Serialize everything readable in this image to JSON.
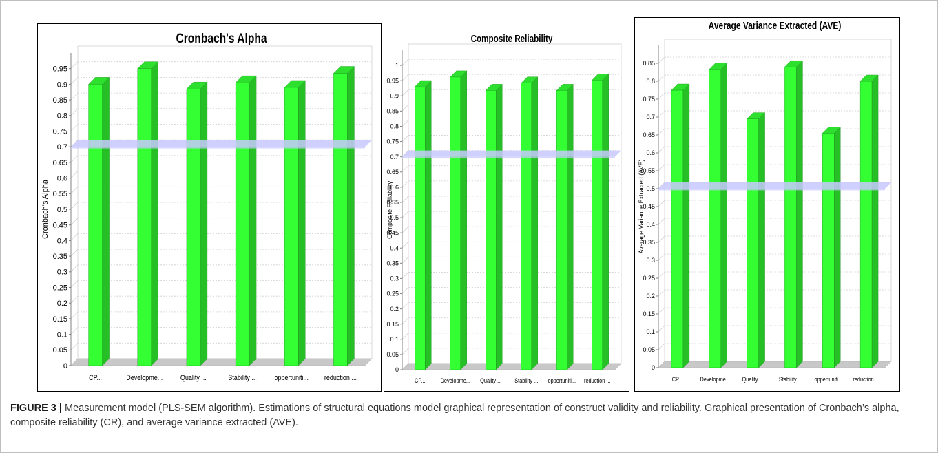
{
  "chart_data": [
    {
      "type": "bar",
      "title": "Cronbach's Alpha",
      "ylabel": "Cronbach's Alpha",
      "categories": [
        "CP...",
        "Developme...",
        "Quality ...",
        "Stability ...",
        "oppertuniti...",
        "reduction ..."
      ],
      "values": [
        0.9,
        0.95,
        0.885,
        0.905,
        0.89,
        0.935
      ],
      "threshold": 0.7,
      "ylim": [
        0,
        1.0
      ],
      "yticks": [
        "0",
        "0.05",
        "0.1",
        "0.15",
        "0.2",
        "0.25",
        "0.3",
        "0.35",
        "0.4",
        "0.45",
        "0.5",
        "0.55",
        "0.6",
        "0.65",
        "0.7",
        "0.75",
        "0.8",
        "0.85",
        "0.9",
        "0.95"
      ],
      "grid": true,
      "bar_color": "#33ff33",
      "threshold_color": "#c8c8ff"
    },
    {
      "type": "bar",
      "title": "Composite Reliability",
      "ylabel": "Composite Reliability",
      "categories": [
        "CP...",
        "Developme...",
        "Quality ...",
        "Stability ...",
        "oppertuniti...",
        "reduction ..."
      ],
      "values": [
        0.93,
        0.962,
        0.918,
        0.942,
        0.918,
        0.952
      ],
      "threshold": 0.7,
      "ylim": [
        0,
        1.05
      ],
      "yticks": [
        "0",
        "0.05",
        "0.1",
        "0.15",
        "0.2",
        "0.25",
        "0.3",
        "0.35",
        "0.4",
        "0.45",
        "0.5",
        "0.55",
        "0.6",
        "0.65",
        "0.7",
        "0.75",
        "0.8",
        "0.85",
        "0.9",
        "0.95",
        "1"
      ],
      "grid": true,
      "bar_color": "#33ff33",
      "threshold_color": "#c8c8ff"
    },
    {
      "type": "bar",
      "title": "Average Variance Extracted (AVE)",
      "ylabel": "Average Variance Extracted (AVE)",
      "categories": [
        "CP...",
        "Developme...",
        "Quality ...",
        "Stability ...",
        "oppertuniti...",
        "reduction ..."
      ],
      "values": [
        0.775,
        0.833,
        0.695,
        0.84,
        0.655,
        0.8
      ],
      "threshold": 0.5,
      "ylim": [
        0,
        0.9
      ],
      "yticks": [
        "0",
        "0.05",
        "0.1",
        "0.15",
        "0.2",
        "0.25",
        "0.3",
        "0.35",
        "0.4",
        "0.45",
        "0.5",
        "0.55",
        "0.6",
        "0.65",
        "0.7",
        "0.75",
        "0.8",
        "0.85"
      ],
      "grid": true,
      "bar_color": "#33ff33",
      "threshold_color": "#c8c8ff"
    }
  ],
  "caption": {
    "label": "FIGURE 3 |",
    "text": " Measurement model (PLS-SEM algorithm). Estimations of structural equations model graphical representation of construct validity and reliability. Graphical presentation of Cronbach’s alpha, composite reliability (CR), and average variance extracted (AVE)."
  }
}
